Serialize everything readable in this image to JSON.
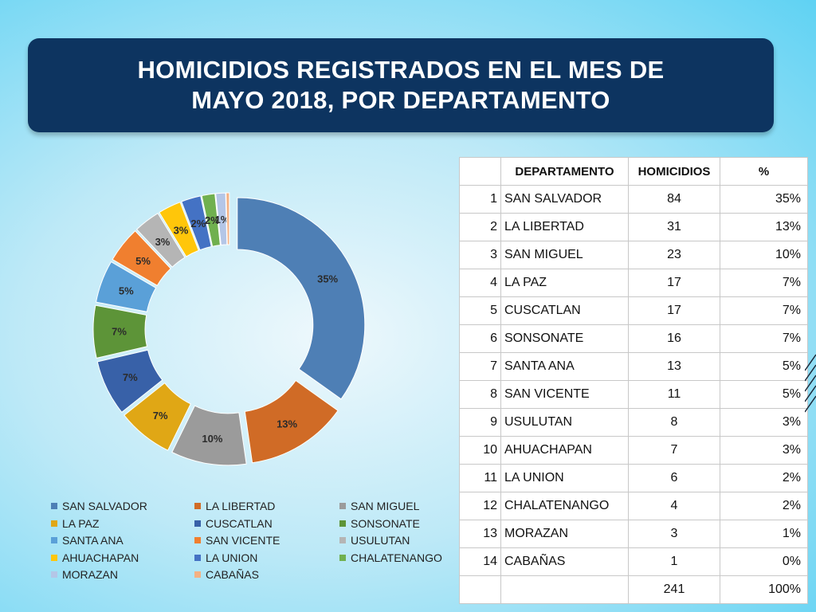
{
  "title": {
    "line1": "HOMICIDIOS REGISTRADOS EN EL MES DE",
    "line2": "MAYO 2018, POR DEPARTAMENTO"
  },
  "chart_data": {
    "type": "pie",
    "variant": "exploded-doughnut",
    "title": "",
    "legend_position": "bottom",
    "categories": [
      "SAN SALVADOR",
      "LA LIBERTAD",
      "SAN MIGUEL",
      "LA PAZ",
      "CUSCATLAN",
      "SONSONATE",
      "SANTA ANA",
      "SAN VICENTE",
      "USULUTAN",
      "AHUACHAPAN",
      "LA UNION",
      "CHALATENANGO",
      "MORAZAN",
      "CABAÑAS"
    ],
    "values": [
      84,
      31,
      23,
      17,
      17,
      16,
      13,
      11,
      8,
      7,
      6,
      4,
      3,
      1
    ],
    "data_labels": [
      "35%",
      "13%",
      "10%",
      "7%",
      "7%",
      "7%",
      "5%",
      "5%",
      "3%",
      "3%",
      "2%",
      "2%",
      "1%",
      ""
    ],
    "colors": [
      "#4e7fb5",
      "#d06b26",
      "#9b9b9b",
      "#e0a715",
      "#3861a8",
      "#5d9438",
      "#5aa0d8",
      "#f07f2f",
      "#b5b5b5",
      "#ffc60a",
      "#4472c4",
      "#70b04f",
      "#b4c6e7",
      "#f4b183"
    ]
  },
  "table": {
    "headers": [
      "",
      "DEPARTAMENTO",
      "HOMICIDIOS",
      "%"
    ],
    "rows": [
      [
        "1",
        "SAN SALVADOR",
        "84",
        "35%"
      ],
      [
        "2",
        "LA LIBERTAD",
        "31",
        "13%"
      ],
      [
        "3",
        "SAN MIGUEL",
        "23",
        "10%"
      ],
      [
        "4",
        "LA PAZ",
        "17",
        "7%"
      ],
      [
        "5",
        "CUSCATLAN",
        "17",
        "7%"
      ],
      [
        "6",
        "SONSONATE",
        "16",
        "7%"
      ],
      [
        "7",
        "SANTA ANA",
        "13",
        "5%"
      ],
      [
        "8",
        "SAN VICENTE",
        "11",
        "5%"
      ],
      [
        "9",
        "USULUTAN",
        "8",
        "3%"
      ],
      [
        "10",
        "AHUACHAPAN",
        "7",
        "3%"
      ],
      [
        "11",
        "LA UNION",
        "6",
        "2%"
      ],
      [
        "12",
        "CHALATENANGO",
        "4",
        "2%"
      ],
      [
        "13",
        "MORAZAN",
        "3",
        "1%"
      ],
      [
        "14",
        "CABAÑAS",
        "1",
        "0%"
      ]
    ],
    "total": [
      "",
      "",
      "241",
      "100%"
    ]
  }
}
